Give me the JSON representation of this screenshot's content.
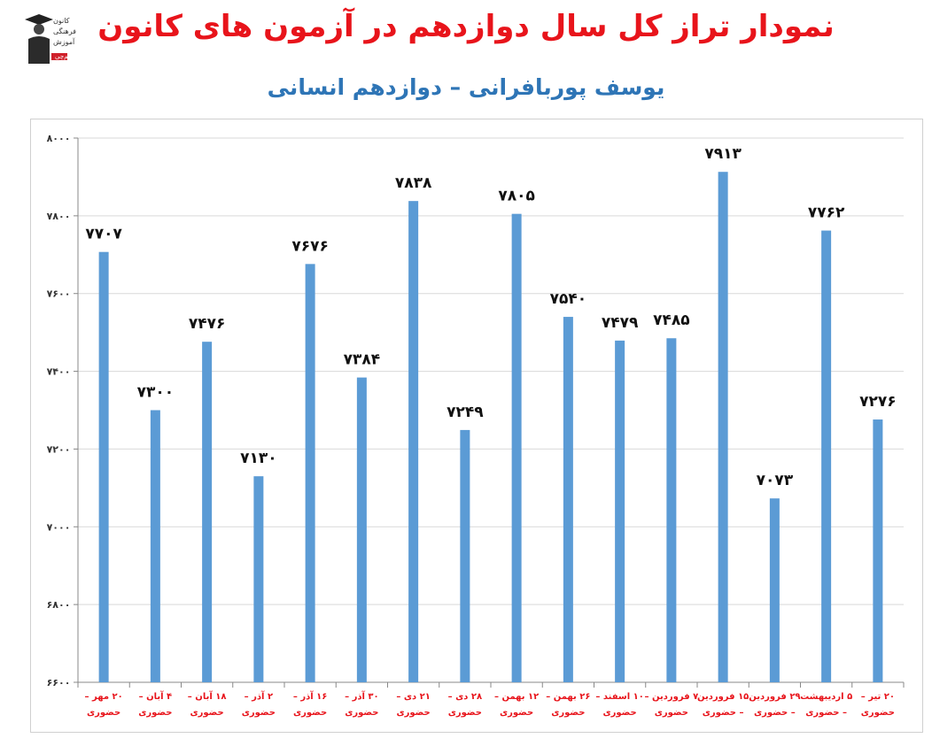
{
  "header": {
    "title": "نمودار تراز کل سال دوازدهم در آزمون های کانون",
    "subtitle": "یوسف پوربافرانی – دوازدهم انسانی"
  },
  "logo": {
    "text_lines": [
      "کانون",
      "فرهنگی",
      "آموزش",
      "قلم‌چی"
    ],
    "name": "kanoon-logo"
  },
  "colors": {
    "bar": "#5b9bd5",
    "title": "#e8141b",
    "subtitle": "#2e75b6",
    "grid": "#d9d9d9",
    "xlabel": "#e8141b"
  },
  "chart_data": {
    "type": "bar",
    "title": "نمودار تراز کل سال دوازدهم در آزمون های کانون",
    "subtitle": "یوسف پوربافرانی – دوازدهم انسانی",
    "xlabel": "",
    "ylabel": "",
    "ylim": [
      6600,
      8000
    ],
    "yticks": [
      6600,
      6800,
      7000,
      7200,
      7400,
      7600,
      7800,
      8000
    ],
    "ytick_labels": [
      "۶۶۰۰",
      "۶۸۰۰",
      "۷۰۰۰",
      "۷۲۰۰",
      "۷۴۰۰",
      "۷۶۰۰",
      "۷۸۰۰",
      "۸۰۰۰"
    ],
    "grid": true,
    "legend": "none",
    "categories": [
      "۲۰ مهر – حضوری",
      "۴ آبان – حضوری",
      "۱۸ آبان – حضوری",
      "۲ آذر – حضوری",
      "۱۶ آذر – حضوری",
      "۳۰ آذر – حضوری",
      "۲۱ دی – حضوری",
      "۲۸ دی – حضوری",
      "۱۲ بهمن – حضوری",
      "۲۶ بهمن – حضوری",
      "۱۰ اسفند – حضوری",
      "۷ فروردین – حضوری",
      "۱۵ فروردین – حضوری",
      "۲۹ فروردین – حضوری",
      "۵ اردیبهشت – حضوری",
      "۲۰ تیر – حضوری"
    ],
    "values": [
      7707,
      7300,
      7476,
      7130,
      7676,
      7384,
      7838,
      7249,
      7805,
      7540,
      7479,
      7485,
      7913,
      7073,
      7762,
      7276
    ],
    "value_labels": [
      "۷۷۰۷",
      "۷۳۰۰",
      "۷۴۷۶",
      "۷۱۳۰",
      "۷۶۷۶",
      "۷۳۸۴",
      "۷۸۳۸",
      "۷۲۴۹",
      "۷۸۰۵",
      "۷۵۴۰",
      "۷۴۷۹",
      "۷۴۸۵",
      "۷۹۱۳",
      "۷۰۷۳",
      "۷۷۶۲",
      "۷۲۷۶"
    ]
  }
}
